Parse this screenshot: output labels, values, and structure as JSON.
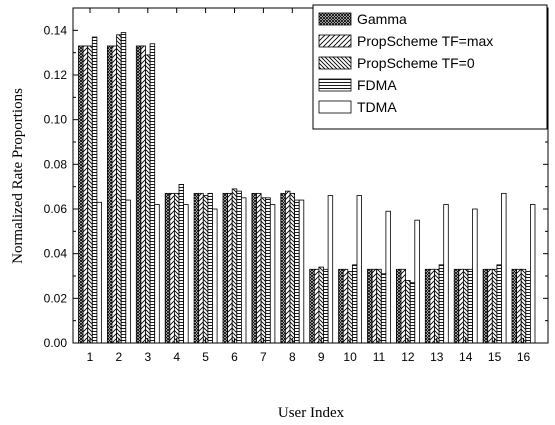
{
  "chart_data": {
    "type": "bar",
    "xlabel": "User Index",
    "ylabel": "Normalized Rate Proportions",
    "categories": [
      "1",
      "2",
      "3",
      "4",
      "5",
      "6",
      "7",
      "8",
      "9",
      "10",
      "11",
      "12",
      "13",
      "14",
      "15",
      "16"
    ],
    "yticks": [
      "0.00",
      "0.02",
      "0.04",
      "0.06",
      "0.08",
      "0.10",
      "0.12",
      "0.14"
    ],
    "ylim": [
      0.0,
      0.15
    ],
    "grid": false,
    "legend_position": "top-right",
    "series": [
      {
        "name": "Gamma",
        "pattern": "crosshatch",
        "values": [
          0.133,
          0.133,
          0.133,
          0.067,
          0.067,
          0.067,
          0.067,
          0.067,
          0.033,
          0.033,
          0.033,
          0.033,
          0.033,
          0.033,
          0.033,
          0.033
        ]
      },
      {
        "name": "PropScheme TF=max",
        "pattern": "forward-diagonal",
        "values": [
          0.133,
          0.133,
          0.133,
          0.067,
          0.067,
          0.067,
          0.067,
          0.068,
          0.033,
          0.033,
          0.033,
          0.033,
          0.033,
          0.033,
          0.033,
          0.033
        ]
      },
      {
        "name": "PropScheme TF=0",
        "pattern": "back-diagonal",
        "values": [
          0.133,
          0.138,
          0.129,
          0.067,
          0.066,
          0.069,
          0.065,
          0.067,
          0.034,
          0.032,
          0.033,
          0.028,
          0.033,
          0.033,
          0.033,
          0.033
        ]
      },
      {
        "name": "FDMA",
        "pattern": "horizontal",
        "values": [
          0.137,
          0.139,
          0.134,
          0.071,
          0.067,
          0.068,
          0.065,
          0.064,
          0.033,
          0.035,
          0.031,
          0.027,
          0.035,
          0.033,
          0.035,
          0.032
        ]
      },
      {
        "name": "TDMA",
        "pattern": "empty",
        "values": [
          0.063,
          0.064,
          0.062,
          0.062,
          0.06,
          0.065,
          0.062,
          0.064,
          0.066,
          0.066,
          0.059,
          0.055,
          0.062,
          0.06,
          0.067,
          0.062
        ]
      }
    ]
  }
}
